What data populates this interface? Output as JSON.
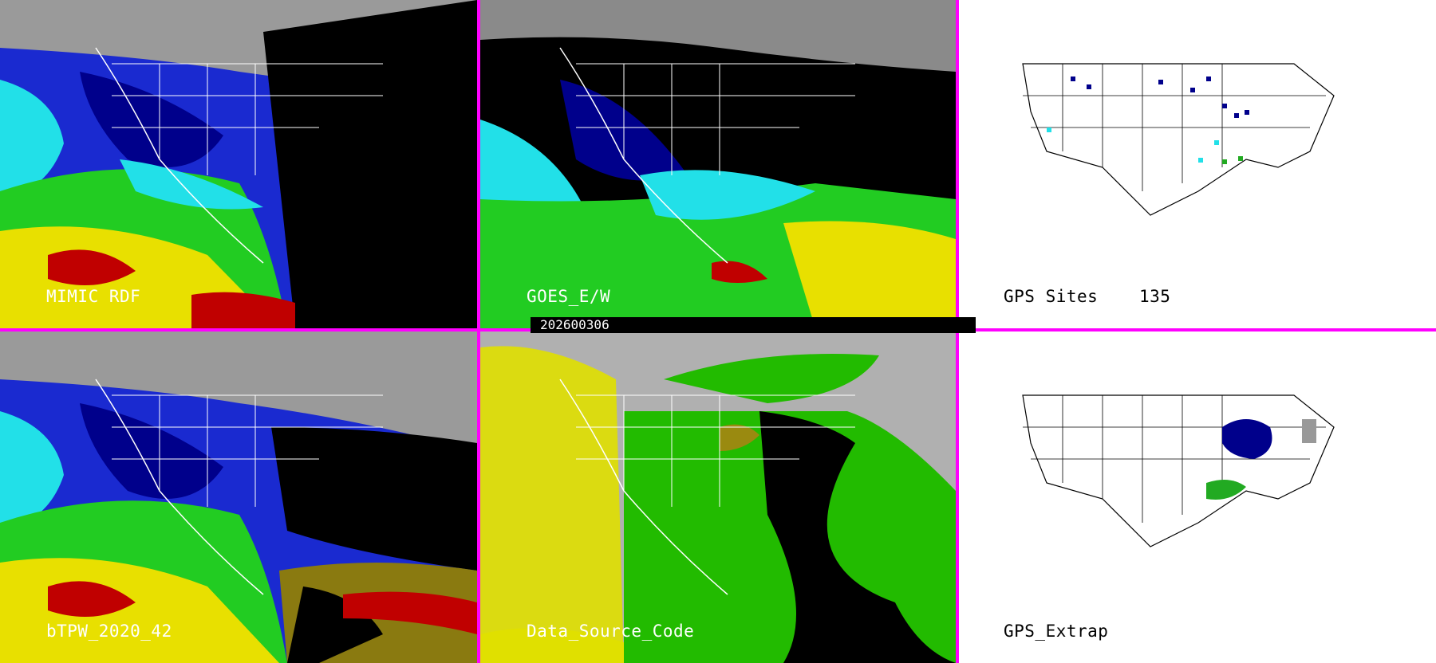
{
  "panels": [
    {
      "id": "mimic",
      "label": "MIMIC RDF",
      "style": "satellite-tpw"
    },
    {
      "id": "goes",
      "label": "GOES_E/W",
      "style": "satellite-tpw"
    },
    {
      "id": "gps_sites",
      "label": "GPS Sites",
      "count": "135",
      "style": "map-white"
    },
    {
      "id": "btpw",
      "label": "bTPW_2020_42",
      "style": "satellite-tpw"
    },
    {
      "id": "dsc",
      "label": "Data_Source_Code",
      "style": "source-code"
    },
    {
      "id": "gps_extrap",
      "label": "GPS_Extrap",
      "style": "map-white"
    }
  ],
  "date_label": "202600306",
  "colors": {
    "divider": "#ff00ff",
    "tpw_dark": "#000000",
    "tpw_gray": "#aaaaaa",
    "tpw_navy": "#00008b",
    "tpw_blue": "#1a2ad0",
    "tpw_cyan": "#22e0e8",
    "tpw_green": "#22cc22",
    "tpw_yellow": "#e8e000",
    "tpw_red": "#c00000",
    "source_gray": "#b0b0b0",
    "source_green": "#22bb00",
    "source_yellow": "#e0e000",
    "source_olive": "#9a8a10"
  }
}
